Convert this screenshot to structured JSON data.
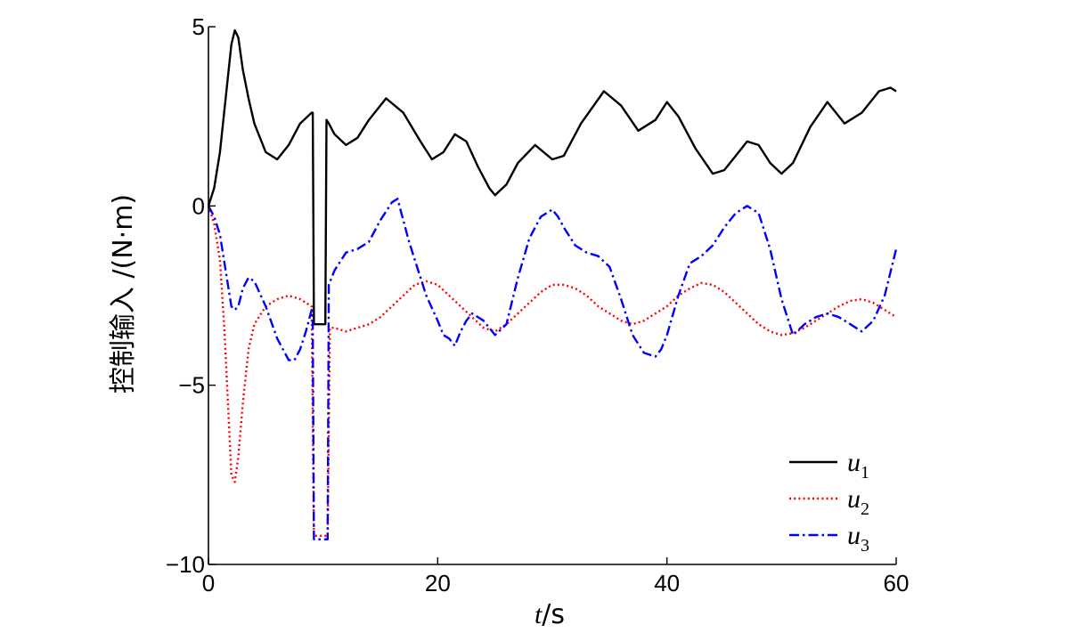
{
  "chart_data": {
    "type": "line",
    "xlabel": "t/s",
    "xlabel_italic": "t",
    "xlabel_rest": "/s",
    "ylabel": "控制输入 /(N·m)",
    "xlim": [
      0,
      60
    ],
    "ylim": [
      -10,
      5
    ],
    "xticks": [
      0,
      20,
      40,
      60
    ],
    "yticks": [
      -10,
      -5,
      0,
      5
    ],
    "grid": false,
    "legend_position": "bottom-right",
    "series": [
      {
        "name": "u1",
        "name_base": "u",
        "name_sub": "1",
        "color": "#000000",
        "style": "solid",
        "x": [
          0,
          0.5,
          1,
          1.5,
          2,
          2.3,
          2.6,
          3,
          3.5,
          4,
          5,
          6,
          7,
          8,
          9,
          9.1,
          9.2,
          9.3,
          9.4,
          10,
          10.2,
          10.3,
          10.5,
          11,
          12,
          13,
          14,
          15.5,
          17,
          18.5,
          19.5,
          20.5,
          21.5,
          22.5,
          23.5,
          24.5,
          25,
          26,
          27,
          28.5,
          30,
          31,
          32.5,
          34.5,
          36,
          37.5,
          39,
          40,
          41,
          42.5,
          44,
          45,
          46,
          47,
          48,
          49,
          50,
          51,
          52.5,
          54,
          55.5,
          57,
          58.5,
          59.5,
          60
        ],
        "y": [
          0,
          0.5,
          1.5,
          3,
          4.5,
          4.9,
          4.7,
          3.8,
          3.0,
          2.3,
          1.5,
          1.3,
          1.7,
          2.3,
          2.6,
          2.6,
          -3.3,
          -3.3,
          -3.3,
          -3.3,
          -3.3,
          2.4,
          2.3,
          2.0,
          1.7,
          1.9,
          2.4,
          3.0,
          2.6,
          1.8,
          1.3,
          1.5,
          2.0,
          1.8,
          1.1,
          0.5,
          0.3,
          0.6,
          1.2,
          1.7,
          1.3,
          1.4,
          2.3,
          3.2,
          2.8,
          2.1,
          2.4,
          2.9,
          2.5,
          1.6,
          0.9,
          1.0,
          1.4,
          1.8,
          1.7,
          1.2,
          0.9,
          1.2,
          2.2,
          2.9,
          2.3,
          2.6,
          3.2,
          3.3,
          3.2
        ]
      },
      {
        "name": "u2",
        "name_base": "u",
        "name_sub": "2",
        "color": "#ff0000",
        "style": "dotted",
        "x": [
          0,
          0.5,
          1,
          1.4,
          1.7,
          2,
          2.3,
          2.6,
          3,
          3.5,
          4,
          5,
          6,
          7,
          8,
          9,
          9.2,
          9.4,
          9.6,
          9.8,
          10,
          10.2,
          10.4,
          10.6,
          11,
          12,
          13,
          14,
          15,
          16,
          17,
          18,
          19,
          20,
          21,
          22,
          23,
          24,
          25,
          26,
          27,
          28,
          29,
          30,
          31,
          32,
          33,
          34,
          35,
          36,
          37,
          38,
          39,
          40,
          41,
          42,
          43,
          44,
          45,
          46,
          47,
          48,
          49,
          50,
          51,
          52,
          53,
          54,
          55,
          56,
          57,
          58,
          59,
          60
        ],
        "y": [
          0,
          -0.5,
          -1.5,
          -3.5,
          -5.5,
          -7.5,
          -7.7,
          -7.0,
          -5.5,
          -4.0,
          -3.3,
          -2.8,
          -2.6,
          -2.5,
          -2.6,
          -2.8,
          -9.2,
          -9.2,
          -9.2,
          -9.2,
          -9.2,
          -9.2,
          -9.2,
          -3.4,
          -3.4,
          -3.5,
          -3.4,
          -3.3,
          -3.1,
          -2.8,
          -2.5,
          -2.2,
          -2.1,
          -2.2,
          -2.5,
          -2.8,
          -3.1,
          -3.4,
          -3.5,
          -3.3,
          -3.0,
          -2.7,
          -2.4,
          -2.2,
          -2.2,
          -2.3,
          -2.5,
          -2.8,
          -3.0,
          -3.2,
          -3.3,
          -3.2,
          -3.0,
          -2.8,
          -2.5,
          -2.3,
          -2.15,
          -2.2,
          -2.4,
          -2.7,
          -3.0,
          -3.3,
          -3.5,
          -3.6,
          -3.55,
          -3.4,
          -3.2,
          -3.0,
          -2.8,
          -2.65,
          -2.6,
          -2.7,
          -2.9,
          -3.1
        ]
      },
      {
        "name": "u3",
        "name_base": "u",
        "name_sub": "3",
        "color": "#0000ff",
        "style": "dashdot",
        "x": [
          0,
          0.5,
          1,
          1.5,
          2,
          2.3,
          2.6,
          3,
          3.5,
          4,
          5,
          6,
          7,
          7.5,
          8,
          8.5,
          9,
          9.1,
          9.2,
          9.4,
          9.6,
          9.8,
          10,
          10.2,
          10.4,
          10.5,
          11,
          12,
          13,
          14,
          15,
          16,
          16.5,
          17,
          17.5,
          18,
          19,
          20,
          20.5,
          21,
          21.5,
          22,
          22.5,
          23,
          24,
          25,
          26,
          27,
          28,
          29,
          30,
          30.5,
          31,
          32,
          33,
          34,
          35,
          36,
          37,
          38,
          39,
          39.5,
          40,
          41,
          42,
          43,
          44,
          45,
          46,
          47,
          48,
          49,
          50,
          51,
          52,
          53,
          54,
          55,
          56,
          57,
          58,
          59,
          60
        ],
        "y": [
          0,
          -0.3,
          -0.8,
          -1.8,
          -2.8,
          -2.9,
          -2.8,
          -2.3,
          -2.0,
          -2.1,
          -2.8,
          -3.7,
          -4.3,
          -4.3,
          -4.0,
          -3.5,
          -2.9,
          -3.3,
          -9.3,
          -9.3,
          -9.3,
          -9.3,
          -9.3,
          -9.3,
          -9.3,
          -2.2,
          -1.8,
          -1.3,
          -1.2,
          -1.0,
          -0.4,
          0.1,
          0.2,
          -0.4,
          -1.0,
          -1.5,
          -2.5,
          -3.2,
          -3.6,
          -3.7,
          -3.9,
          -3.5,
          -3.2,
          -3.0,
          -3.2,
          -3.6,
          -3.3,
          -2.0,
          -0.9,
          -0.3,
          -0.1,
          -0.3,
          -0.6,
          -1.1,
          -1.3,
          -1.4,
          -1.7,
          -2.6,
          -3.6,
          -4.1,
          -4.2,
          -4.0,
          -3.6,
          -2.5,
          -1.6,
          -1.4,
          -1.1,
          -0.6,
          -0.2,
          0.0,
          -0.2,
          -1.2,
          -2.6,
          -3.6,
          -3.3,
          -3.1,
          -3.0,
          -3.1,
          -3.3,
          -3.5,
          -3.2,
          -2.5,
          -1.2
        ]
      }
    ]
  }
}
